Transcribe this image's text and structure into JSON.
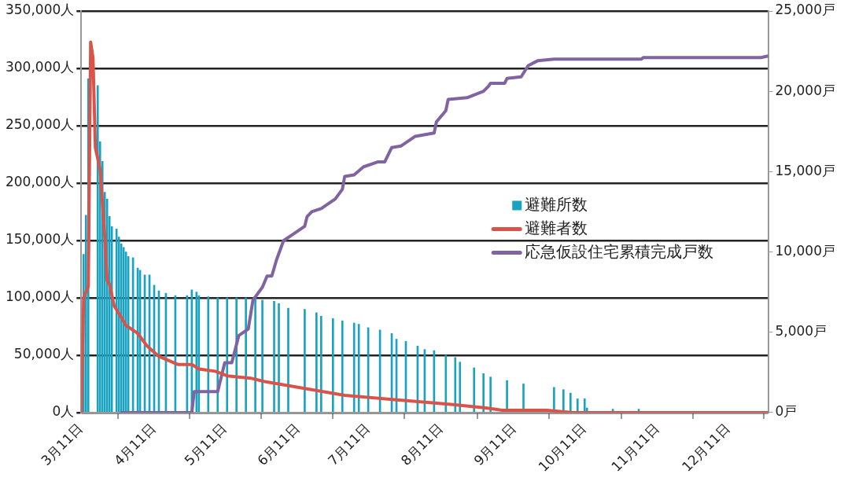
{
  "chart_data": {
    "type": "bar",
    "xlim": [
      "--03-11",
      "--12-28"
    ],
    "xticks": [
      {
        "value": "--03-11",
        "label": "3月11日"
      },
      {
        "value": "--04-11",
        "label": "4月11日"
      },
      {
        "value": "--05-11",
        "label": "5月11日"
      },
      {
        "value": "--06-11",
        "label": "6月11日"
      },
      {
        "value": "--07-11",
        "label": "7月11日"
      },
      {
        "value": "--08-11",
        "label": "8月11日"
      },
      {
        "value": "--09-11",
        "label": "9月11日"
      },
      {
        "value": "--10-11",
        "label": "10月11日"
      },
      {
        "value": "--11-11",
        "label": "11月11日"
      },
      {
        "value": "--12-11",
        "label": "12月11日"
      }
    ],
    "ylim": [
      0,
      350000
    ],
    "yticks": [
      {
        "value": 0,
        "label": "0人"
      },
      {
        "value": 50000,
        "label": "50,000人"
      },
      {
        "value": 100000,
        "label": "100,000人"
      },
      {
        "value": 150000,
        "label": "150,000人"
      },
      {
        "value": 200000,
        "label": "200,000人"
      },
      {
        "value": 250000,
        "label": "250,000人"
      },
      {
        "value": 300000,
        "label": "300,000人"
      },
      {
        "value": 350000,
        "label": "350,000人"
      }
    ],
    "y2lim": [
      0,
      25000
    ],
    "y2ticks": [
      {
        "value": 0,
        "label": "0戸"
      },
      {
        "value": 5000,
        "label": "5,000戸"
      },
      {
        "value": 10000,
        "label": "10,000戸"
      },
      {
        "value": 15000,
        "label": "15,000戸"
      },
      {
        "value": 20000,
        "label": "20,000戸"
      },
      {
        "value": 25000,
        "label": "25,000戸"
      }
    ],
    "grid": "y",
    "legend": "right",
    "marker": "none",
    "series": [
      {
        "name": "避難所数",
        "color": "#1aa3c0",
        "x": [
          "--03-12",
          "--03-13",
          "--03-14",
          "--03-18",
          "--03-19",
          "--03-20",
          "--03-21",
          "--03-22",
          "--03-23",
          "--03-24",
          "--03-26",
          "--03-27",
          "--03-28",
          "--03-29",
          "--03-30",
          "--03-31",
          "--04-02",
          "--04-04",
          "--04-05",
          "--04-07",
          "--04-09",
          "--04-11",
          "--04-13",
          "--04-16",
          "--04-20",
          "--04-25",
          "--04-27",
          "--04-29",
          "--04-30",
          "--05-04",
          "--05-08",
          "--05-12",
          "--05-16",
          "--05-20",
          "--05-24",
          "--05-27",
          "--06-01",
          "--06-03",
          "--06-07",
          "--06-14",
          "--06-19",
          "--06-21",
          "--06-26",
          "--06-30",
          "--07-05",
          "--07-07",
          "--07-11",
          "--07-16",
          "--07-21",
          "--07-23",
          "--07-27",
          "--08-01",
          "--08-04",
          "--08-08",
          "--08-13",
          "--08-17",
          "--08-19",
          "--08-25",
          "--08-29",
          "--09-01",
          "--09-08",
          "--09-15",
          "--09-28",
          "--10-02",
          "--10-05",
          "--10-08",
          "--10-11",
          "--10-12",
          "--10-23",
          "--11-03",
          "--11-09"
        ],
        "values": [
          138000,
          172000,
          291000,
          285000,
          236000,
          219000,
          192000,
          186000,
          171000,
          162000,
          160000,
          153000,
          147000,
          144000,
          140000,
          136000,
          135000,
          126000,
          124000,
          120000,
          120000,
          111000,
          106000,
          104000,
          102000,
          102000,
          107000,
          105000,
          102000,
          101000,
          100000,
          100000,
          100000,
          100000,
          100000,
          98000,
          97000,
          95000,
          91000,
          90000,
          87000,
          84000,
          82000,
          80000,
          78000,
          77000,
          74000,
          72000,
          69000,
          64000,
          62000,
          58000,
          55000,
          54000,
          50000,
          48000,
          44000,
          39000,
          34000,
          31000,
          28000,
          25000,
          22000,
          20000,
          17000,
          12000,
          12000,
          4000,
          3000,
          3000,
          1000
        ]
      },
      {
        "name": "避難者数",
        "type": "line",
        "color": "#d9534a",
        "x": [
          "--03-11",
          "--03-12",
          "--03-14",
          "--03-15",
          "--03-16",
          "--03-17",
          "--03-19",
          "--03-21",
          "--03-22",
          "--03-23",
          "--03-25",
          "--03-28",
          "--03-30",
          "--04-04",
          "--04-08",
          "--04-13",
          "--04-21",
          "--04-27",
          "--04-30",
          "--05-07",
          "--05-12",
          "--05-22",
          "--05-28",
          "--06-14",
          "--07-01",
          "--07-24",
          "--08-16",
          "--08-30",
          "--09-06",
          "--09-25",
          "--10-06",
          "--12-28"
        ],
        "values": [
          0,
          100000,
          110000,
          323000,
          309000,
          231000,
          212000,
          153000,
          115000,
          112000,
          93000,
          83000,
          76000,
          69000,
          58000,
          49000,
          42000,
          42000,
          38000,
          36000,
          32000,
          30000,
          27000,
          21000,
          15000,
          11000,
          7000,
          4000,
          2000,
          2000,
          0,
          0
        ]
      },
      {
        "name": "応急仮設住宅累積完成戸数",
        "type": "line",
        "axis": "y2",
        "color": "#8064a2",
        "x": [
          "--03-28",
          "--04-27",
          "--04-28",
          "--05-08",
          "--05-11",
          "--05-14",
          "--05-17",
          "--05-21",
          "--05-23",
          "--05-27",
          "--05-29",
          "--05-31",
          "--06-02",
          "--06-05",
          "--06-09",
          "--06-14",
          "--06-15",
          "--06-17",
          "--06-21",
          "--06-27",
          "--06-30",
          "--07-01",
          "--07-05",
          "--07-09",
          "--07-15",
          "--07-18",
          "--07-21",
          "--07-25",
          "--07-31",
          "--08-08",
          "--08-09",
          "--08-13",
          "--08-14",
          "--08-22",
          "--08-29",
          "--08-31",
          "--09-01",
          "--09-07",
          "--09-08",
          "--09-14",
          "--09-17",
          "--09-21",
          "--09-28",
          "--11-04",
          "--11-05",
          "--12-25",
          "--12-28"
        ],
        "values": [
          0,
          0,
          1300,
          1300,
          3100,
          3100,
          4800,
          5200,
          7000,
          7800,
          8500,
          8500,
          9500,
          10700,
          11100,
          11600,
          12200,
          12500,
          12700,
          13300,
          13900,
          14700,
          14800,
          15300,
          15600,
          15600,
          16500,
          16600,
          17200,
          17400,
          18100,
          18800,
          19500,
          19600,
          20000,
          20300,
          20500,
          20500,
          20800,
          20900,
          21600,
          21900,
          22000,
          22000,
          22100,
          22100,
          22200
        ]
      }
    ]
  }
}
